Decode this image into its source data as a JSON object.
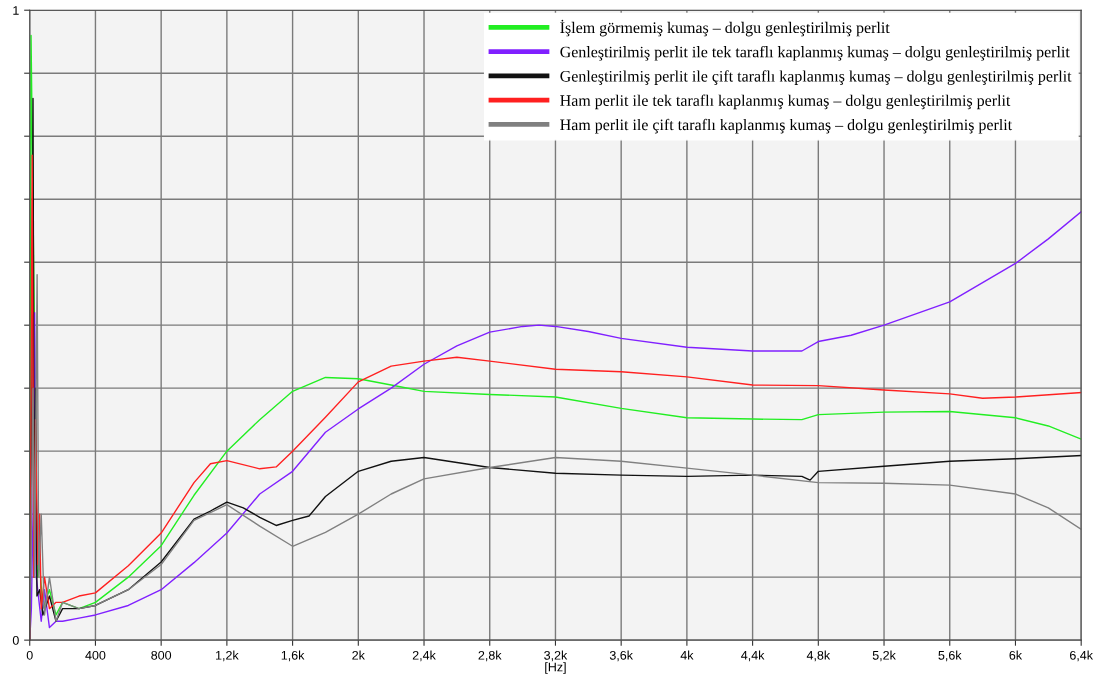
{
  "chart_data": {
    "type": "line",
    "xlabel": "[Hz]",
    "xlim": [
      0,
      6400
    ],
    "xticks": [
      0,
      400,
      800,
      {
        "value": 1200,
        "label": "1,2k"
      },
      {
        "value": 1600,
        "label": "1,6k"
      },
      {
        "value": 2000,
        "label": "2k"
      },
      {
        "value": 2400,
        "label": "2,4k"
      },
      {
        "value": 2800,
        "label": "2,8k"
      },
      {
        "value": 3200,
        "label": "3,2k"
      },
      {
        "value": 3600,
        "label": "3,6k"
      },
      {
        "value": 4000,
        "label": "4k"
      },
      {
        "value": 4400,
        "label": "4,4k"
      },
      {
        "value": 4800,
        "label": "4,8k"
      },
      {
        "value": 5200,
        "label": "5,2k"
      },
      {
        "value": 5600,
        "label": "5,6k"
      },
      {
        "value": 6000,
        "label": "6k"
      },
      {
        "value": 6400,
        "label": "6,4k"
      }
    ],
    "ylim": [
      0,
      1
    ],
    "yticks": [
      0,
      {
        "value": 0.1,
        "label": null
      },
      {
        "value": 0.2,
        "label": null
      },
      {
        "value": 0.3,
        "label": null
      },
      {
        "value": 0.4,
        "label": null
      },
      {
        "value": 0.5,
        "label": null
      },
      {
        "value": 0.6,
        "label": null
      },
      {
        "value": 0.7,
        "label": null
      },
      {
        "value": 0.8,
        "label": null
      },
      {
        "value": 0.9,
        "label": null
      },
      1
    ],
    "grid": true,
    "legend": "top right",
    "line_style": "solid",
    "marker": "none",
    "series": [
      {
        "name": "İşlem görmemiş kumaş – dolgu genleştirilmiş perlit",
        "color": "#22ee22",
        "x": [
          0,
          8,
          24,
          45,
          60,
          80,
          120,
          160,
          200,
          300,
          400,
          600,
          800,
          1000,
          1200,
          1400,
          1600,
          1800,
          2000,
          2200,
          2400,
          2800,
          3200,
          3600,
          4000,
          4400,
          4700,
          4800,
          5200,
          5600,
          6000,
          6200,
          6400
        ],
        "values": [
          0.0,
          0.96,
          0.6,
          0.1,
          0.12,
          0.05,
          0.08,
          0.04,
          0.06,
          0.05,
          0.06,
          0.1,
          0.15,
          0.23,
          0.3,
          0.35,
          0.395,
          0.417,
          0.415,
          0.405,
          0.395,
          0.39,
          0.386,
          0.368,
          0.353,
          0.351,
          0.35,
          0.358,
          0.362,
          0.363,
          0.353,
          0.34,
          0.319
        ]
      },
      {
        "name": "Genleştirilmiş perlit ile tek taraflı kaplanmış kumaş – dolgu genleştirilmiş perlit",
        "color": "#8020ff",
        "x": [
          0,
          10,
          20,
          30,
          40,
          70,
          90,
          120,
          160,
          200,
          300,
          400,
          600,
          800,
          1000,
          1200,
          1400,
          1600,
          1800,
          2000,
          2200,
          2400,
          2600,
          2800,
          3000,
          3100,
          3200,
          3400,
          3600,
          4000,
          4400,
          4700,
          4800,
          5000,
          5200,
          5600,
          6000,
          6200,
          6400
        ],
        "values": [
          0.0,
          0.05,
          0.2,
          0.52,
          0.1,
          0.03,
          0.08,
          0.02,
          0.03,
          0.03,
          0.035,
          0.04,
          0.055,
          0.08,
          0.123,
          0.17,
          0.232,
          0.268,
          0.33,
          0.367,
          0.4,
          0.438,
          0.467,
          0.489,
          0.498,
          0.5,
          0.498,
          0.49,
          0.479,
          0.465,
          0.459,
          0.459,
          0.474,
          0.484,
          0.5,
          0.537,
          0.598,
          0.637,
          0.68
        ]
      },
      {
        "name": "Genleştirilmiş perlit ile çift taraflı kaplanmış kumaş – dolgu genleştirilmiş perlit",
        "color": "#111111",
        "x": [
          0,
          12,
          20,
          28,
          36,
          44,
          60,
          80,
          120,
          160,
          200,
          300,
          400,
          600,
          800,
          1000,
          1100,
          1200,
          1300,
          1400,
          1500,
          1600,
          1700,
          1800,
          2000,
          2200,
          2400,
          2600,
          2800,
          3200,
          3600,
          4000,
          4400,
          4700,
          4750,
          4800,
          5200,
          5600,
          6000,
          6400
        ],
        "values": [
          0.0,
          0.3,
          0.86,
          0.1,
          0.4,
          0.07,
          0.08,
          0.04,
          0.07,
          0.03,
          0.05,
          0.05,
          0.055,
          0.08,
          0.124,
          0.192,
          0.205,
          0.219,
          0.21,
          0.195,
          0.182,
          0.19,
          0.197,
          0.228,
          0.268,
          0.284,
          0.29,
          0.282,
          0.274,
          0.265,
          0.262,
          0.26,
          0.262,
          0.26,
          0.254,
          0.268,
          0.276,
          0.284,
          0.288,
          0.293
        ]
      },
      {
        "name": "Ham perlit ile tek taraflı kaplanmış kumaş – dolgu genleştirilmiş perlit",
        "color": "#ff2020",
        "x": [
          0,
          6,
          15,
          25,
          35,
          50,
          60,
          70,
          90,
          120,
          160,
          200,
          300,
          400,
          600,
          800,
          1000,
          1100,
          1200,
          1400,
          1500,
          1600,
          1800,
          2000,
          2200,
          2400,
          2600,
          2800,
          3200,
          3600,
          4000,
          4400,
          4800,
          5200,
          5600,
          5800,
          6000,
          6400
        ],
        "values": [
          0.0,
          0.3,
          0.77,
          0.1,
          0.35,
          0.12,
          0.2,
          0.05,
          0.1,
          0.05,
          0.06,
          0.06,
          0.07,
          0.075,
          0.118,
          0.17,
          0.25,
          0.28,
          0.285,
          0.272,
          0.275,
          0.3,
          0.354,
          0.41,
          0.435,
          0.443,
          0.449,
          0.443,
          0.43,
          0.426,
          0.418,
          0.405,
          0.404,
          0.397,
          0.391,
          0.384,
          0.386,
          0.393
        ]
      },
      {
        "name": "Ham perlit ile çift taraflı kaplanmış kumaş – dolgu genleştirilmiş perlit",
        "color": "#808080",
        "x": [
          0,
          10,
          20,
          30,
          45,
          55,
          70,
          90,
          120,
          160,
          200,
          300,
          400,
          600,
          800,
          1000,
          1200,
          1400,
          1600,
          1800,
          2000,
          2200,
          2400,
          2800,
          3200,
          3600,
          4000,
          4400,
          4800,
          5200,
          5600,
          6000,
          6200,
          6400
        ],
        "values": [
          0.0,
          0.2,
          0.4,
          0.1,
          0.58,
          0.1,
          0.2,
          0.04,
          0.1,
          0.03,
          0.06,
          0.05,
          0.055,
          0.08,
          0.12,
          0.19,
          0.215,
          0.181,
          0.149,
          0.171,
          0.2,
          0.232,
          0.256,
          0.274,
          0.29,
          0.284,
          0.273,
          0.262,
          0.25,
          0.249,
          0.246,
          0.232,
          0.21,
          0.176
        ]
      }
    ]
  }
}
